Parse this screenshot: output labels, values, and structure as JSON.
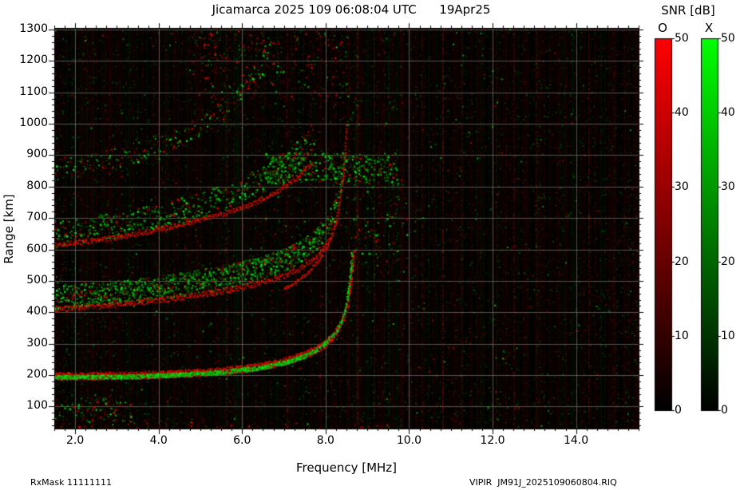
{
  "footer": {
    "left": "RxMask 11111111",
    "right": "VIPIR  JM91J_2025109060804.RIQ"
  },
  "chart_data": {
    "type": "heatmap",
    "title": "Jicamarca 2025 109 06:08:04 UTC      19Apr25",
    "xlabel": "Frequency [MHz]",
    "ylabel": "Range [km]",
    "xlim": [
      1.5,
      15.5
    ],
    "ylim": [
      30,
      1305
    ],
    "grid": true,
    "xticks": [
      2,
      4,
      6,
      8,
      10,
      12,
      14
    ],
    "xtick_labels": [
      "2.0",
      "4.0",
      "6.0",
      "8.0",
      "10.0",
      "12.0",
      "14.0"
    ],
    "yticks": [
      100,
      200,
      300,
      400,
      500,
      600,
      700,
      800,
      900,
      1000,
      1100,
      1200,
      1300
    ],
    "ytick_labels": [
      "100",
      "200",
      "300",
      "400",
      "500",
      "600",
      "700",
      "800",
      "900",
      "1000",
      "1100",
      "1200",
      "1300"
    ],
    "x_minor_step": 0.25,
    "y_minor_step": 20,
    "background_color": "#000000",
    "o_mode_color": "#ff0000",
    "x_mode_color": "#00ff00",
    "colorbar": {
      "title": "SNR [dB]",
      "bars": [
        {
          "label": "O",
          "colormap": "red",
          "min": 0,
          "max": 50,
          "ticks": [
            0,
            10,
            20,
            30,
            40,
            50
          ]
        },
        {
          "label": "X",
          "colormap": "green",
          "min": 0,
          "max": 50,
          "ticks": [
            0,
            10,
            20,
            30,
            40,
            50
          ]
        }
      ]
    },
    "traces": [
      {
        "name": "first-hop-O",
        "color": "red",
        "width_km": 24,
        "density": 3,
        "points": [
          [
            1.5,
            198
          ],
          [
            2.0,
            198
          ],
          [
            2.5,
            199
          ],
          [
            3.0,
            200
          ],
          [
            3.5,
            201
          ],
          [
            4.0,
            203
          ],
          [
            4.5,
            206
          ],
          [
            5.0,
            209
          ],
          [
            5.5,
            214
          ],
          [
            6.0,
            221
          ],
          [
            6.4,
            228
          ],
          [
            6.8,
            238
          ],
          [
            7.1,
            248
          ],
          [
            7.4,
            261
          ],
          [
            7.7,
            278
          ],
          [
            7.95,
            298
          ],
          [
            8.15,
            322
          ],
          [
            8.3,
            350
          ],
          [
            8.42,
            382
          ],
          [
            8.52,
            428
          ],
          [
            8.6,
            495
          ],
          [
            8.65,
            560
          ],
          [
            8.67,
            605
          ]
        ]
      },
      {
        "name": "first-hop-X",
        "color": "green",
        "width_km": 14,
        "density": 2.6,
        "gap_prob": 0.22,
        "points": [
          [
            1.5,
            194
          ],
          [
            2.5,
            195
          ],
          [
            3.5,
            197
          ],
          [
            4.5,
            202
          ],
          [
            5.5,
            210
          ],
          [
            6.4,
            224
          ],
          [
            7.1,
            244
          ],
          [
            7.5,
            262
          ],
          [
            7.8,
            283
          ],
          [
            8.05,
            310
          ],
          [
            8.25,
            342
          ],
          [
            8.38,
            375
          ],
          [
            8.48,
            420
          ],
          [
            8.55,
            480
          ],
          [
            8.6,
            545
          ],
          [
            8.62,
            595
          ]
        ]
      },
      {
        "name": "second-hop-riser-O",
        "color": "red",
        "width_km": 10,
        "density": 1.1,
        "points": [
          [
            7.0,
            475
          ],
          [
            7.3,
            500
          ],
          [
            7.6,
            532
          ],
          [
            7.85,
            570
          ],
          [
            8.05,
            615
          ],
          [
            8.2,
            670
          ],
          [
            8.3,
            730
          ],
          [
            8.38,
            800
          ],
          [
            8.44,
            880
          ],
          [
            8.48,
            960
          ],
          [
            8.5,
            1005
          ]
        ]
      },
      {
        "name": "second-hop-edge-O",
        "color": "red",
        "width_km": 18,
        "density": 0.55,
        "points": [
          [
            1.5,
            412
          ],
          [
            2.5,
            420
          ],
          [
            3.5,
            432
          ],
          [
            4.5,
            448
          ],
          [
            5.5,
            468
          ],
          [
            6.3,
            490
          ],
          [
            7.0,
            518
          ],
          [
            7.5,
            550
          ],
          [
            7.9,
            595
          ],
          [
            8.15,
            650
          ],
          [
            8.3,
            710
          ]
        ]
      },
      {
        "name": "third-hop-edge-O",
        "color": "red",
        "width_km": 16,
        "density": 0.32,
        "points": [
          [
            1.5,
            615
          ],
          [
            2.5,
            630
          ],
          [
            3.5,
            652
          ],
          [
            4.5,
            680
          ],
          [
            5.5,
            714
          ],
          [
            6.2,
            745
          ],
          [
            6.8,
            782
          ],
          [
            7.3,
            828
          ],
          [
            7.7,
            880
          ]
        ]
      }
    ],
    "diffuse_bands": [
      {
        "name": "second-hop-spread",
        "thickness_km": 75,
        "density": 0.85,
        "green_ratio": 0.78,
        "points": [
          [
            1.5,
            448
          ],
          [
            2.2,
            455
          ],
          [
            3.0,
            465
          ],
          [
            3.8,
            477
          ],
          [
            4.6,
            492
          ],
          [
            5.4,
            510
          ],
          [
            6.1,
            530
          ],
          [
            6.7,
            553
          ],
          [
            7.2,
            580
          ],
          [
            7.6,
            615
          ],
          [
            7.95,
            662
          ],
          [
            8.2,
            722
          ],
          [
            8.35,
            792
          ],
          [
            8.45,
            872
          ]
        ]
      },
      {
        "name": "third-hop-spread",
        "thickness_km": 85,
        "density": 0.45,
        "green_ratio": 0.72,
        "points": [
          [
            1.5,
            652
          ],
          [
            2.3,
            664
          ],
          [
            3.1,
            682
          ],
          [
            3.9,
            704
          ],
          [
            4.7,
            730
          ],
          [
            5.4,
            758
          ],
          [
            6.0,
            790
          ],
          [
            6.5,
            824
          ],
          [
            7.0,
            868
          ],
          [
            7.4,
            918
          ],
          [
            7.7,
            965
          ]
        ]
      },
      {
        "name": "fourth-hop-spread",
        "thickness_km": 70,
        "density": 0.22,
        "green_ratio": 0.6,
        "points": [
          [
            1.5,
            856
          ],
          [
            2.3,
            873
          ],
          [
            3.0,
            896
          ],
          [
            3.7,
            923
          ],
          [
            4.4,
            956
          ],
          [
            5.0,
            996
          ],
          [
            5.5,
            1042
          ],
          [
            6.0,
            1102
          ],
          [
            6.4,
            1172
          ],
          [
            6.7,
            1252
          ]
        ]
      }
    ],
    "patches": [
      {
        "name": "e-region-scatter",
        "f": [
          1.5,
          3.4
        ],
        "r": [
          50,
          130
        ],
        "density": 0.22,
        "green_ratio": 0.55
      },
      {
        "name": "bottom-edge-scatter",
        "f": [
          1.5,
          9.7
        ],
        "r": [
          30,
          52
        ],
        "density": 0.12,
        "green_ratio": 0.12
      },
      {
        "name": "mid-cluster",
        "f": [
          6.5,
          9.7
        ],
        "r": [
          810,
          910
        ],
        "density": 0.55,
        "green_ratio": 0.8
      },
      {
        "name": "top-arc-scatter",
        "f": [
          4.8,
          8.6
        ],
        "r": [
          1080,
          1300
        ],
        "density": 0.1,
        "green_ratio": 0.35
      },
      {
        "name": "riser-right-scatter",
        "f": [
          8.6,
          10.0
        ],
        "r": [
          560,
          830
        ],
        "density": 0.1,
        "green_ratio": 0.7
      }
    ],
    "interference_lines": [
      {
        "f": 5.62,
        "alpha": 0.25,
        "color": "red"
      },
      {
        "f": 7.06,
        "alpha": 0.18,
        "color": "red"
      },
      {
        "f": 8.75,
        "alpha": 0.3,
        "color": "red"
      },
      {
        "f": 9.15,
        "alpha": 0.16,
        "color": "green"
      },
      {
        "f": 9.5,
        "alpha": 0.14,
        "color": "green"
      },
      {
        "f": 10.3,
        "alpha": 0.2,
        "color": "red"
      },
      {
        "f": 10.8,
        "alpha": 0.35,
        "color": "red"
      },
      {
        "f": 11.24,
        "alpha": 0.16,
        "color": "red"
      },
      {
        "f": 12.08,
        "alpha": 0.14,
        "color": "red"
      },
      {
        "f": 12.5,
        "alpha": 0.22,
        "color": "red"
      },
      {
        "f": 13.05,
        "alpha": 0.16,
        "color": "red"
      },
      {
        "f": 13.6,
        "alpha": 0.12,
        "color": "red"
      },
      {
        "f": 14.3,
        "alpha": 0.25,
        "color": "red"
      },
      {
        "f": 14.9,
        "alpha": 0.15,
        "color": "red"
      }
    ]
  }
}
